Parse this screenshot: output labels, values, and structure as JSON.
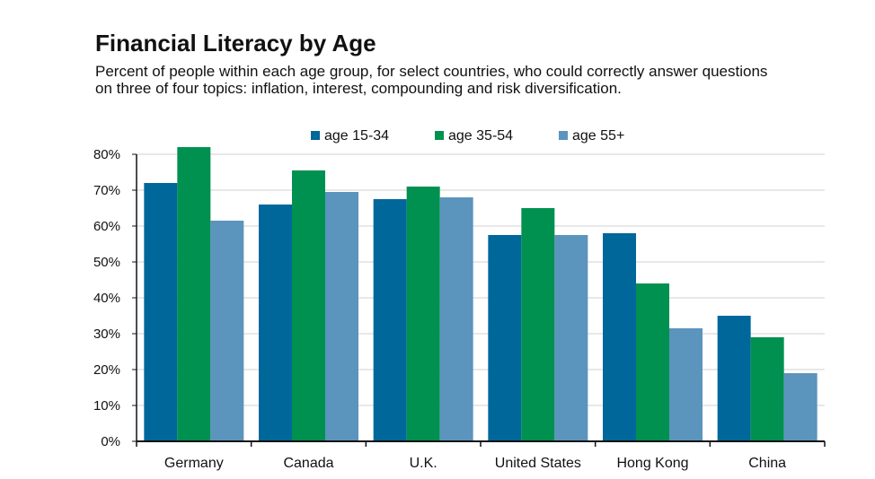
{
  "chart_data": {
    "type": "bar",
    "title": "Financial Literacy by Age",
    "subtitle": "Percent of people within each age group, for select countries, who could correctly answer questions on three of four topics: inflation, interest, compounding and risk diversification.",
    "categories": [
      "Germany",
      "Canada",
      "U.K.",
      "United States",
      "Hong Kong",
      "China"
    ],
    "series": [
      {
        "name": "age 15-34",
        "color": "#00679a",
        "values": [
          72,
          66,
          67.5,
          57.5,
          58,
          35
        ]
      },
      {
        "name": "age 35-54",
        "color": "#009150",
        "values": [
          82,
          75.5,
          71,
          65,
          44,
          29
        ]
      },
      {
        "name": "age 55+",
        "color": "#5b94bd",
        "values": [
          61.5,
          69.5,
          68,
          57.5,
          31.5,
          19
        ]
      }
    ],
    "ylim": [
      0,
      80
    ],
    "yticks": [
      0,
      10,
      20,
      30,
      40,
      50,
      60,
      70,
      80
    ],
    "ytick_labels": [
      "0%",
      "10%",
      "20%",
      "30%",
      "40%",
      "50%",
      "60%",
      "70%",
      "80%"
    ],
    "grid": true,
    "legend_position": "top-center"
  }
}
